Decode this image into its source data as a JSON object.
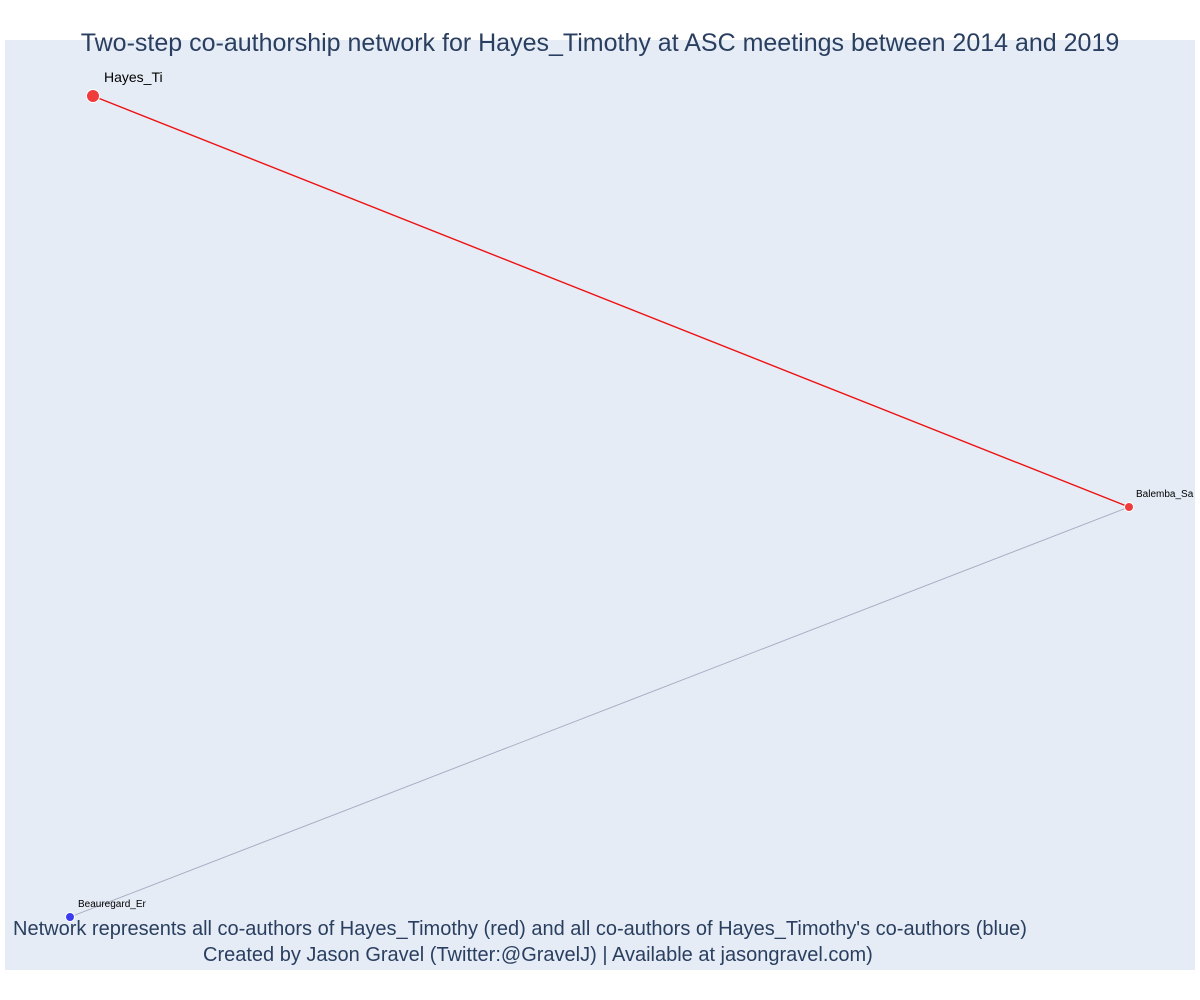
{
  "title": "Two-step co-authorship network for Hayes_Timothy at ASC meetings between 2014 and 2019",
  "annotations": {
    "line1": "Network represents all co-authors of Hayes_Timothy (red) and all co-authors of Hayes_Timothy's co-authors (blue)",
    "line2": "Created by Jason Gravel (Twitter:@GravelJ) | Available at jasongravel.com)"
  },
  "colors": {
    "plot_background": "#e5ecf6",
    "title_text": "#2a3f5f",
    "ego_node": "#ef3b3b",
    "coauthor_node": "#ef3b3b",
    "second_step_node": "#3b3bef",
    "ego_edge": "#ee1111",
    "other_edge": "#a8a8bf"
  },
  "network": {
    "nodes": [
      {
        "id": "Hayes_Ti",
        "label": "Hayes_Ti",
        "group": "ego",
        "color": "#ef3b3b"
      },
      {
        "id": "Balemba_Sa",
        "label": "Balemba_Sa",
        "group": "co-author",
        "color": "#ef3b3b"
      },
      {
        "id": "Beauregard_Er",
        "label": "Beauregard_Er",
        "group": "co-author-of-co-author",
        "color": "#3b3bef"
      }
    ],
    "edges": [
      {
        "source": "Hayes_Ti",
        "target": "Balemba_Sa",
        "color": "#ee1111"
      },
      {
        "source": "Balemba_Sa",
        "target": "Beauregard_Er",
        "color": "#a8a8bf"
      }
    ]
  }
}
